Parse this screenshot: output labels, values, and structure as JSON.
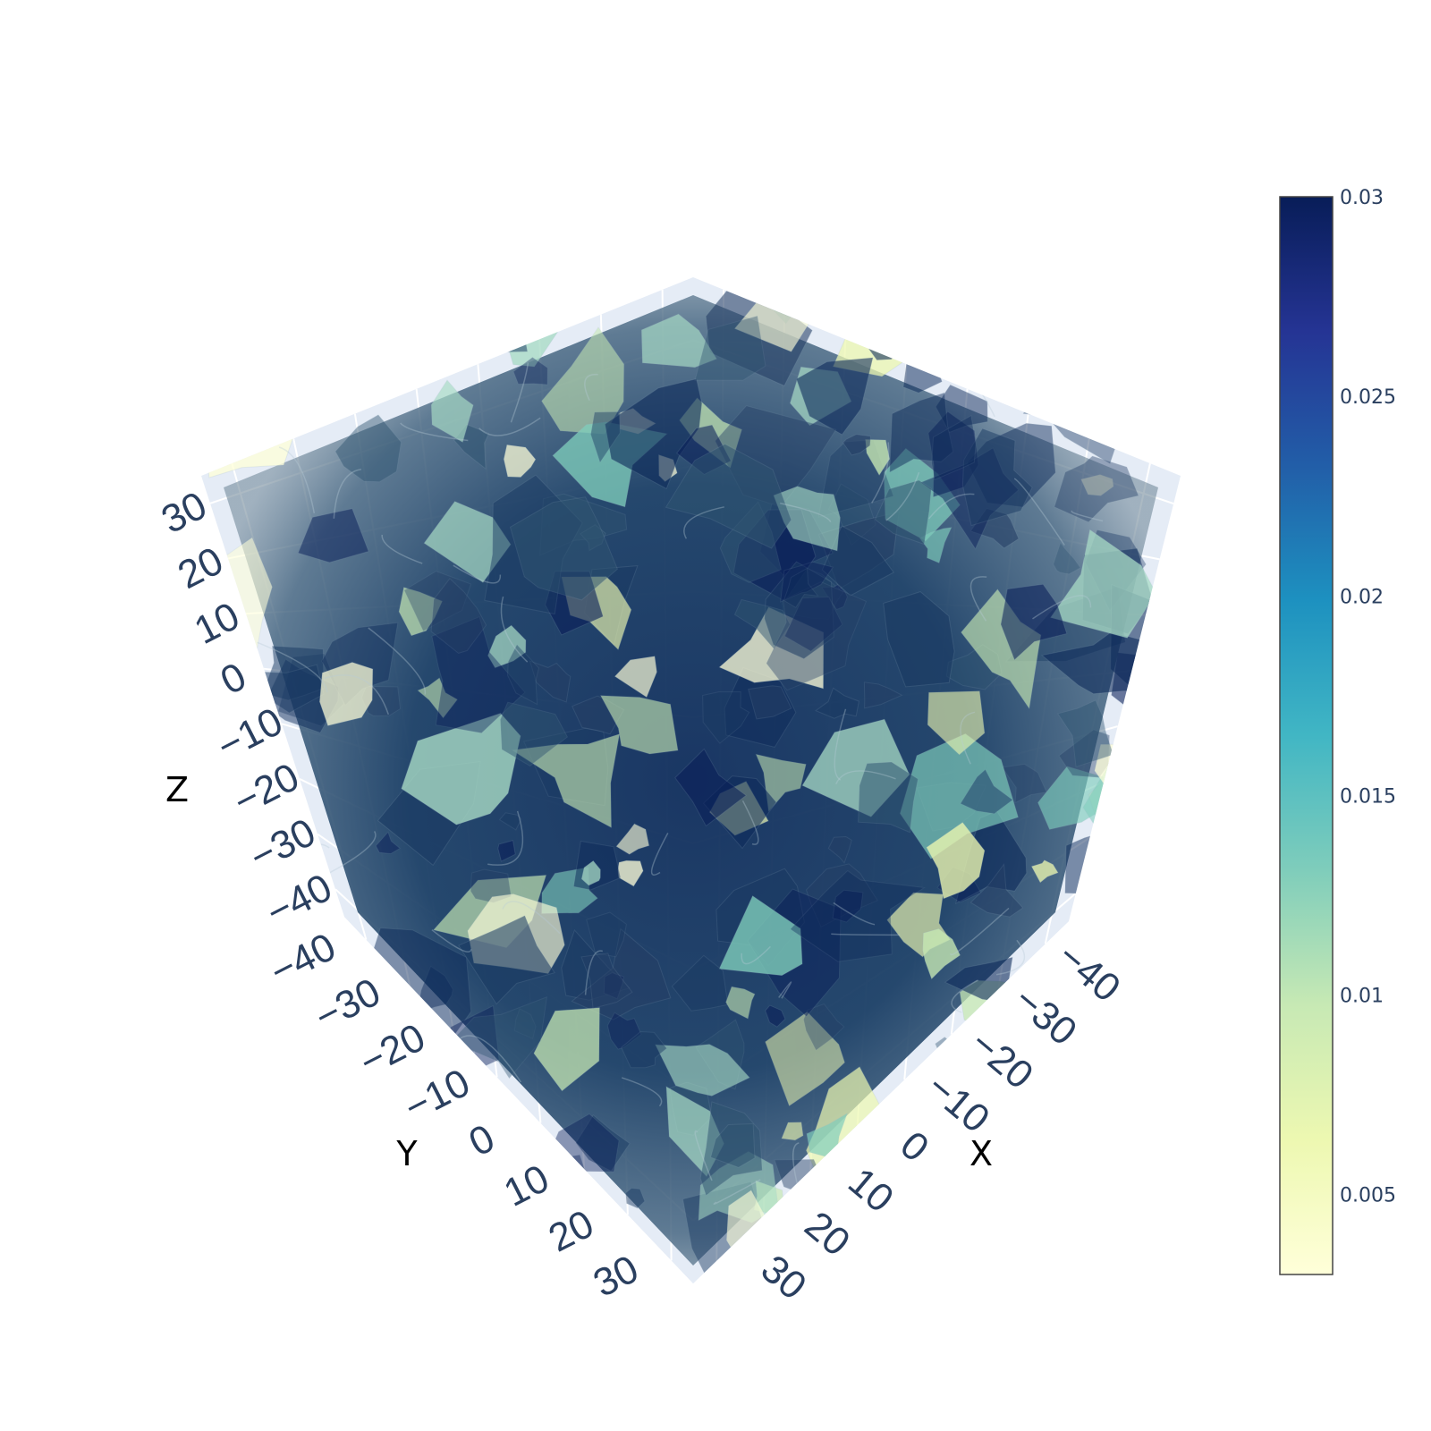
{
  "chart_data": {
    "type": "volume",
    "description_axes": {
      "x": {
        "title": "X",
        "range": [
          -45,
          35
        ],
        "tick_labels": [
          "−40",
          "−30",
          "−20",
          "−10",
          "0",
          "10",
          "20",
          "30"
        ],
        "tick_values": [
          -40,
          -30,
          -20,
          -10,
          0,
          10,
          20,
          30
        ]
      },
      "y": {
        "title": "Y",
        "range": [
          -45,
          35
        ],
        "tick_labels": [
          "−40",
          "−30",
          "−20",
          "−10",
          "0",
          "10",
          "20",
          "30"
        ],
        "tick_values": [
          -40,
          -30,
          -20,
          -10,
          0,
          10,
          20,
          30
        ]
      },
      "z": {
        "title": "Z",
        "range": [
          -45,
          35
        ],
        "tick_labels": [
          "−40",
          "−30",
          "−20",
          "−10",
          "0",
          "10",
          "20",
          "30"
        ],
        "tick_values": [
          -40,
          -30,
          -20,
          -10,
          0,
          10,
          20,
          30
        ]
      }
    },
    "colorbar": {
      "colorscale": "YlGnBu",
      "range": [
        0.003,
        0.03
      ],
      "tick_labels": [
        "0.03",
        "0.025",
        "0.02",
        "0.015",
        "0.01",
        "0.005"
      ],
      "tick_values": [
        0.03,
        0.025,
        0.02,
        0.015,
        0.01,
        0.005
      ],
      "colors": [
        "#ffffd9",
        "#edf8b1",
        "#c7e9b4",
        "#7fcdbb",
        "#41b6c4",
        "#1d91c0",
        "#225ea8",
        "#253494",
        "#081d58"
      ]
    },
    "scene_background": "#e5ecf6",
    "grid": true,
    "legend": "none"
  }
}
